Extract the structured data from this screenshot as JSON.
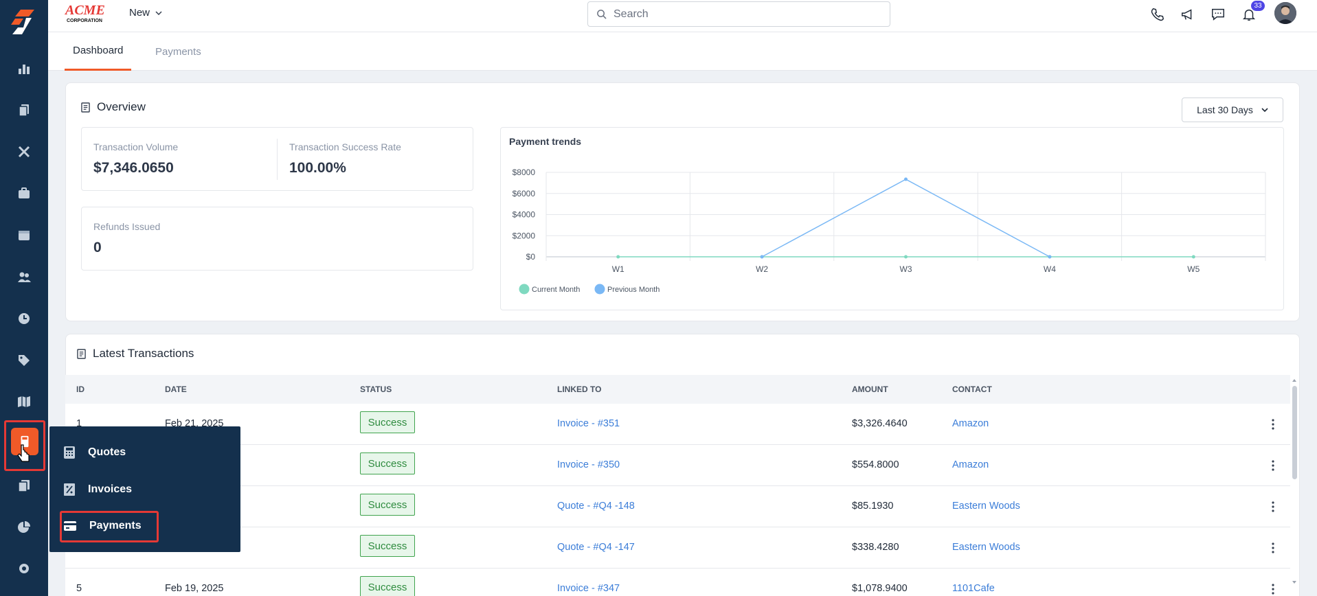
{
  "header": {
    "new_label": "New",
    "search_placeholder": "Search",
    "notifications_count": "33"
  },
  "tabs": [
    {
      "label": "Dashboard"
    },
    {
      "label": "Payments"
    }
  ],
  "overview": {
    "title": "Overview",
    "range_label": "Last 30 Days",
    "stats": {
      "volume_label": "Transaction Volume",
      "volume_value": "$7,346.0650",
      "success_label": "Transaction Success Rate",
      "success_value": "100.00%",
      "refunds_label": "Refunds Issued",
      "refunds_value": "0"
    }
  },
  "chart_data": {
    "type": "line",
    "title": "Payment trends",
    "categories": [
      "W1",
      "W2",
      "W3",
      "W4",
      "W5"
    ],
    "y_ticks": [
      "$0",
      "$2000",
      "$4000",
      "$6000",
      "$8000"
    ],
    "ylim": [
      0,
      8000
    ],
    "grid": true,
    "legend_position": "bottom-left",
    "series": [
      {
        "name": "Current Month",
        "color": "#7fd9c0",
        "values": [
          0,
          0,
          0,
          0,
          0
        ]
      },
      {
        "name": "Previous Month",
        "color": "#7ab8f5",
        "values": [
          null,
          0,
          7346,
          0,
          null
        ]
      }
    ]
  },
  "transactions": {
    "title": "Latest Transactions",
    "columns": {
      "id": "ID",
      "date": "DATE",
      "status": "STATUS",
      "linked": "LINKED TO",
      "amount": "AMOUNT",
      "contact": "CONTACT"
    },
    "rows": [
      {
        "id": "1",
        "date": "Feb 21, 2025",
        "status": "Success",
        "linked": "Invoice - #351",
        "amount": "$3,326.4640",
        "contact": "Amazon"
      },
      {
        "id": "",
        "date": "",
        "status": "Success",
        "linked": "Invoice - #350",
        "amount": "$554.8000",
        "contact": "Amazon"
      },
      {
        "id": "",
        "date": "",
        "status": "Success",
        "linked": "Quote - #Q4 -148",
        "amount": "$85.1930",
        "contact": "Eastern Woods"
      },
      {
        "id": "",
        "date": "",
        "status": "Success",
        "linked": "Quote - #Q4 -147",
        "amount": "$338.4280",
        "contact": "Eastern Woods"
      },
      {
        "id": "5",
        "date": "Feb 19, 2025",
        "status": "Success",
        "linked": "Invoice - #347",
        "amount": "$1,078.9400",
        "contact": "1101Cafe"
      }
    ]
  },
  "flyout": {
    "items": [
      {
        "label": "Quotes"
      },
      {
        "label": "Invoices"
      },
      {
        "label": "Payments"
      }
    ]
  },
  "colors": {
    "sidebar": "#14304d",
    "accent": "#f05a28",
    "highlight": "#e53935",
    "link": "#3b7dd8"
  }
}
